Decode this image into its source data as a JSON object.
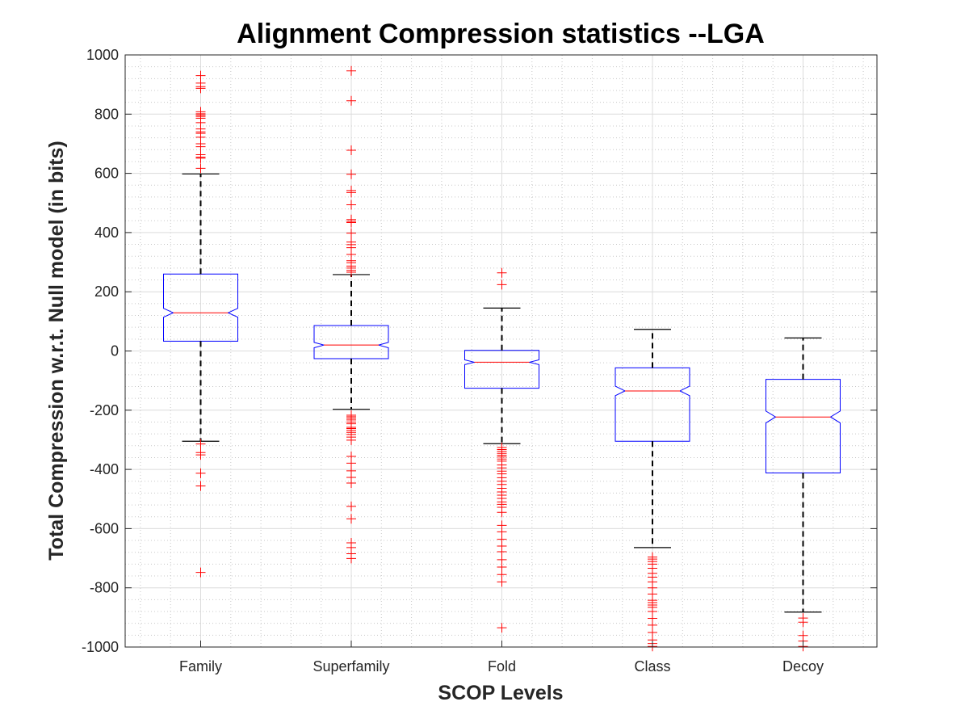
{
  "chart_data": {
    "type": "box",
    "title": "Alignment Compression statistics --LGA",
    "xlabel": "SCOP Levels",
    "ylabel": "Total Compression w.r.t. Null model (in bits)",
    "ylim": [
      -1000,
      1000
    ],
    "yticks": [
      1000,
      800,
      600,
      400,
      200,
      0,
      -200,
      -400,
      -600,
      -800,
      -1000
    ],
    "grid": "on, major and minor",
    "notched": true,
    "colors": {
      "box": "#0000ff",
      "median": "#ff0000",
      "outlier": "#ff0000",
      "whisker": "#000000"
    },
    "categories": [
      "Family",
      "Superfamily",
      "Fold",
      "Class",
      "Decoy"
    ],
    "boxes": [
      {
        "category": "Family",
        "whisker_low": -305,
        "q1": 33,
        "median": 129,
        "q3": 260,
        "whisker_high": 598,
        "notch": [
          114,
          144
        ],
        "outliers": [
          930,
          905,
          893,
          887,
          808,
          801,
          797,
          792,
          786,
          771,
          750,
          740,
          735,
          722,
          700,
          690,
          663,
          655,
          651,
          617,
          -314,
          -343,
          -351,
          -413,
          -456,
          -748
        ]
      },
      {
        "category": "Superfamily",
        "whisker_low": -197,
        "q1": -26,
        "median": 20,
        "q3": 86,
        "whisker_high": 258,
        "notch": [
          11,
          29
        ],
        "outliers": [
          946,
          845,
          678,
          597,
          542,
          535,
          494,
          444,
          438,
          434,
          398,
          368,
          359,
          349,
          326,
          305,
          298,
          287,
          280,
          272,
          266,
          -217,
          -222,
          -227,
          -233,
          -240,
          -246,
          -258,
          -262,
          -268,
          -275,
          -282,
          -291,
          -301,
          -356,
          -379,
          -405,
          -427,
          -446,
          -525,
          -567,
          -648,
          -664,
          -685,
          -701
        ]
      },
      {
        "category": "Fold",
        "whisker_low": -313,
        "q1": -126,
        "median": -38,
        "q3": 2,
        "whisker_high": 145,
        "notch": [
          -46,
          -30
        ],
        "outliers": [
          264,
          224,
          -326,
          -333,
          -339,
          -346,
          -352,
          -358,
          -365,
          -372,
          -385,
          -395,
          -406,
          -415,
          -428,
          -440,
          -451,
          -464,
          -476,
          -487,
          -498,
          -510,
          -518,
          -528,
          -545,
          -589,
          -611,
          -636,
          -659,
          -678,
          -705,
          -730,
          -755,
          -780,
          -935
        ]
      },
      {
        "category": "Class",
        "whisker_low": -664,
        "q1": -305,
        "median": -135,
        "q3": -57,
        "whisker_high": 73,
        "notch": [
          -151,
          -119
        ],
        "outliers": [
          -696,
          -703,
          -711,
          -720,
          -734,
          -751,
          -764,
          -780,
          -800,
          -821,
          -842,
          -850,
          -858,
          -866,
          -880,
          -903,
          -926,
          -951,
          -976,
          -988,
          -998
        ]
      },
      {
        "category": "Decoy",
        "whisker_low": -882,
        "q1": -412,
        "median": -223,
        "q3": -96,
        "whisker_high": 44,
        "notch": [
          -243,
          -203
        ],
        "outliers": [
          -902,
          -916,
          -961,
          -980,
          -998
        ]
      }
    ]
  }
}
